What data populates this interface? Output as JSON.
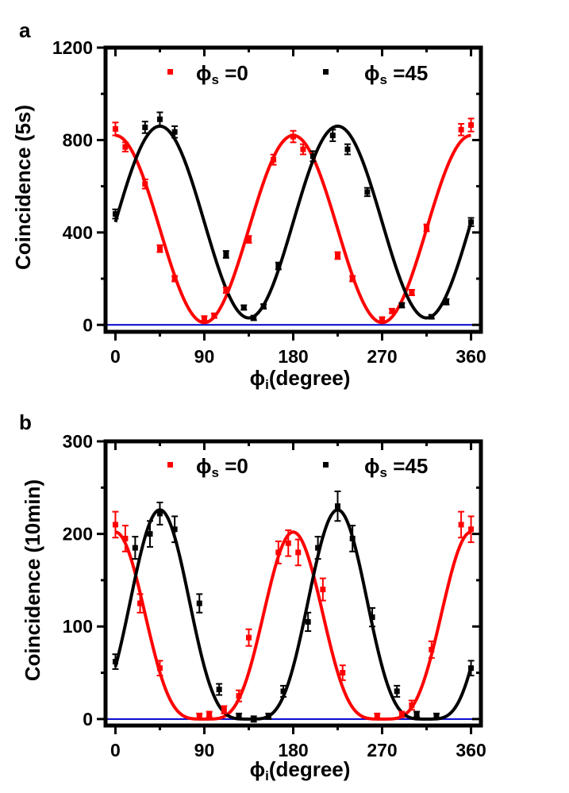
{
  "chart_data": [
    {
      "panel_label": "a",
      "type": "scatter",
      "xlabel_symbol": "ϕ",
      "xlabel_subscript": "i",
      "xlabel_rest": "(degree)",
      "ylabel": "Coincidence (5s)",
      "xlim": [
        -10,
        370
      ],
      "ylim": [
        -30,
        1200
      ],
      "xticks": [
        0,
        90,
        180,
        270,
        360
      ],
      "yticks": [
        0,
        400,
        800,
        1200
      ],
      "xtick_labels": [
        "0",
        "90",
        "180",
        "270",
        "360"
      ],
      "ytick_labels": [
        "0",
        "400",
        "800",
        "1200"
      ],
      "legend_position": "top",
      "series": [
        {
          "name": "ϕs =0",
          "legend_symbol": "ϕ",
          "legend_subscript": "s",
          "legend_text": " =0",
          "color": "#ff0000",
          "fit": {
            "amplitude": 405,
            "offset": 415,
            "phase_deg": 0
          },
          "points": [
            {
              "x": 0,
              "y": 848,
              "err": 28
            },
            {
              "x": 10,
              "y": 770,
              "err": 20
            },
            {
              "x": 30,
              "y": 610,
              "err": 20
            },
            {
              "x": 45,
              "y": 330,
              "err": 15
            },
            {
              "x": 60,
              "y": 200,
              "err": 12
            },
            {
              "x": 90,
              "y": 28,
              "err": 10
            },
            {
              "x": 100,
              "y": 40,
              "err": 10
            },
            {
              "x": 112,
              "y": 150,
              "err": 12
            },
            {
              "x": 135,
              "y": 370,
              "err": 15
            },
            {
              "x": 160,
              "y": 715,
              "err": 22
            },
            {
              "x": 180,
              "y": 815,
              "err": 25
            },
            {
              "x": 190,
              "y": 760,
              "err": 22
            },
            {
              "x": 225,
              "y": 300,
              "err": 15
            },
            {
              "x": 240,
              "y": 200,
              "err": 12
            },
            {
              "x": 270,
              "y": 25,
              "err": 8
            },
            {
              "x": 280,
              "y": 60,
              "err": 10
            },
            {
              "x": 300,
              "y": 140,
              "err": 12
            },
            {
              "x": 315,
              "y": 420,
              "err": 15
            },
            {
              "x": 350,
              "y": 845,
              "err": 25
            },
            {
              "x": 360,
              "y": 865,
              "err": 28
            }
          ]
        },
        {
          "name": "ϕs =45",
          "legend_symbol": "ϕ",
          "legend_subscript": "s",
          "legend_text": " =45",
          "color": "#000000",
          "fit": {
            "amplitude": 415,
            "offset": 445,
            "phase_deg": 45
          },
          "points": [
            {
              "x": 0,
              "y": 480,
              "err": 20
            },
            {
              "x": 30,
              "y": 855,
              "err": 25
            },
            {
              "x": 45,
              "y": 890,
              "err": 30
            },
            {
              "x": 60,
              "y": 835,
              "err": 25
            },
            {
              "x": 112,
              "y": 305,
              "err": 15
            },
            {
              "x": 130,
              "y": 75,
              "err": 10
            },
            {
              "x": 140,
              "y": 30,
              "err": 10
            },
            {
              "x": 150,
              "y": 80,
              "err": 10
            },
            {
              "x": 165,
              "y": 255,
              "err": 15
            },
            {
              "x": 200,
              "y": 730,
              "err": 22
            },
            {
              "x": 220,
              "y": 820,
              "err": 25
            },
            {
              "x": 235,
              "y": 760,
              "err": 22
            },
            {
              "x": 255,
              "y": 575,
              "err": 18
            },
            {
              "x": 290,
              "y": 85,
              "err": 10
            },
            {
              "x": 320,
              "y": 35,
              "err": 8
            },
            {
              "x": 335,
              "y": 100,
              "err": 12
            },
            {
              "x": 360,
              "y": 445,
              "err": 18
            }
          ]
        }
      ]
    },
    {
      "panel_label": "b",
      "type": "scatter",
      "xlabel_symbol": "ϕ",
      "xlabel_subscript": "i",
      "xlabel_rest": "(degree)",
      "ylabel": "Coincidence (10min)",
      "xlim": [
        -10,
        370
      ],
      "ylim": [
        -7,
        300
      ],
      "xticks": [
        0,
        90,
        180,
        270,
        360
      ],
      "yticks": [
        0,
        100,
        200,
        300
      ],
      "xtick_labels": [
        "0",
        "90",
        "180",
        "270",
        "360"
      ],
      "ytick_labels": [
        "0",
        "100",
        "200",
        "300"
      ],
      "legend_position": "top",
      "series": [
        {
          "name": "ϕs =0",
          "legend_symbol": "ϕ",
          "legend_subscript": "s",
          "legend_text": " =0",
          "color": "#ff0000",
          "fit": {
            "amplitude": 100,
            "offset": 102,
            "phase_deg": 0,
            "power": 2
          },
          "points": [
            {
              "x": 0,
              "y": 210,
              "err": 14
            },
            {
              "x": 10,
              "y": 195,
              "err": 14
            },
            {
              "x": 25,
              "y": 125,
              "err": 10
            },
            {
              "x": 45,
              "y": 55,
              "err": 8
            },
            {
              "x": 85,
              "y": 3,
              "err": 3
            },
            {
              "x": 95,
              "y": 5,
              "err": 3
            },
            {
              "x": 110,
              "y": 10,
              "err": 4
            },
            {
              "x": 125,
              "y": 25,
              "err": 6
            },
            {
              "x": 135,
              "y": 88,
              "err": 9
            },
            {
              "x": 165,
              "y": 180,
              "err": 12
            },
            {
              "x": 175,
              "y": 190,
              "err": 14
            },
            {
              "x": 185,
              "y": 180,
              "err": 14
            },
            {
              "x": 210,
              "y": 140,
              "err": 12
            },
            {
              "x": 230,
              "y": 50,
              "err": 8
            },
            {
              "x": 265,
              "y": 3,
              "err": 3
            },
            {
              "x": 290,
              "y": 5,
              "err": 3
            },
            {
              "x": 300,
              "y": 15,
              "err": 5
            },
            {
              "x": 320,
              "y": 75,
              "err": 9
            },
            {
              "x": 350,
              "y": 210,
              "err": 14
            },
            {
              "x": 360,
              "y": 205,
              "err": 14
            }
          ]
        },
        {
          "name": "ϕs =45",
          "legend_symbol": "ϕ",
          "legend_subscript": "s",
          "legend_text": " =45",
          "color": "#000000",
          "fit": {
            "amplitude": 112,
            "offset": 114,
            "phase_deg": 45,
            "power": 2
          },
          "points": [
            {
              "x": 0,
              "y": 62,
              "err": 8
            },
            {
              "x": 20,
              "y": 185,
              "err": 12
            },
            {
              "x": 35,
              "y": 200,
              "err": 14
            },
            {
              "x": 45,
              "y": 222,
              "err": 12
            },
            {
              "x": 60,
              "y": 205,
              "err": 14
            },
            {
              "x": 85,
              "y": 125,
              "err": 10
            },
            {
              "x": 105,
              "y": 32,
              "err": 6
            },
            {
              "x": 125,
              "y": 3,
              "err": 3
            },
            {
              "x": 140,
              "y": 0,
              "err": 3
            },
            {
              "x": 155,
              "y": 3,
              "err": 3
            },
            {
              "x": 170,
              "y": 30,
              "err": 6
            },
            {
              "x": 195,
              "y": 105,
              "err": 10
            },
            {
              "x": 205,
              "y": 185,
              "err": 12
            },
            {
              "x": 225,
              "y": 230,
              "err": 16
            },
            {
              "x": 240,
              "y": 195,
              "err": 14
            },
            {
              "x": 260,
              "y": 110,
              "err": 10
            },
            {
              "x": 285,
              "y": 30,
              "err": 6
            },
            {
              "x": 305,
              "y": 5,
              "err": 3
            },
            {
              "x": 325,
              "y": 3,
              "err": 3
            },
            {
              "x": 360,
              "y": 55,
              "err": 8
            }
          ]
        }
      ],
      "baseline": {
        "y": 0,
        "color": "#0000cc"
      }
    }
  ],
  "baseline_color": "#0000cc"
}
